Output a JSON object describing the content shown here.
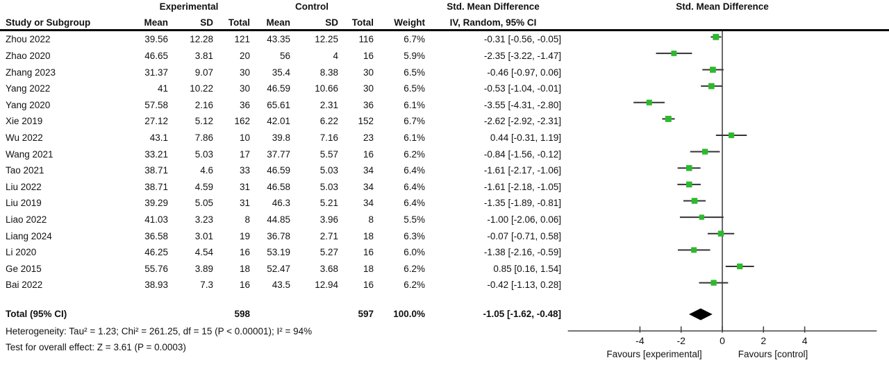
{
  "header": {
    "group_experimental": "Experimental",
    "group_control": "Control",
    "col_study": "Study or Subgroup",
    "col_mean": "Mean",
    "col_sd": "SD",
    "col_total": "Total",
    "col_weight": "Weight",
    "smd_text_title": "Std. Mean Difference",
    "smd_text_sub": "IV, Random, 95% CI",
    "smd_plot_title": "Std. Mean Difference",
    "smd_plot_sub": "IV, Random, 95% CI"
  },
  "footer": {
    "heterogeneity": "Heterogeneity: Tau² = 1.23; Chi² = 261.25, df = 15 (P < 0.00001); I² = 94%",
    "overall_effect": "Test for overall effect: Z = 3.61 (P = 0.0003)"
  },
  "chart_data": {
    "type": "forest",
    "effect_measure": "Std. Mean Difference",
    "method": "IV, Random, 95% CI",
    "studies": [
      {
        "name": "Zhou 2022",
        "mean_e": "39.56",
        "sd_e": "12.28",
        "total_e": "121",
        "mean_c": "43.35",
        "sd_c": "12.25",
        "total_c": "116",
        "weight": "6.7%",
        "ci_text": "-0.31 [-0.56, -0.05]",
        "est": -0.31,
        "lo": -0.56,
        "hi": -0.05
      },
      {
        "name": "Zhao 2020",
        "mean_e": "46.65",
        "sd_e": "3.81",
        "total_e": "20",
        "mean_c": "56",
        "sd_c": "4",
        "total_c": "16",
        "weight": "5.9%",
        "ci_text": "-2.35 [-3.22, -1.47]",
        "est": -2.35,
        "lo": -3.22,
        "hi": -1.47
      },
      {
        "name": "Zhang 2023",
        "mean_e": "31.37",
        "sd_e": "9.07",
        "total_e": "30",
        "mean_c": "35.4",
        "sd_c": "8.38",
        "total_c": "30",
        "weight": "6.5%",
        "ci_text": "-0.46 [-0.97, 0.06]",
        "est": -0.46,
        "lo": -0.97,
        "hi": 0.06
      },
      {
        "name": "Yang 2022",
        "mean_e": "41",
        "sd_e": "10.22",
        "total_e": "30",
        "mean_c": "46.59",
        "sd_c": "10.66",
        "total_c": "30",
        "weight": "6.5%",
        "ci_text": "-0.53 [-1.04, -0.01]",
        "est": -0.53,
        "lo": -1.04,
        "hi": -0.01
      },
      {
        "name": "Yang 2020",
        "mean_e": "57.58",
        "sd_e": "2.16",
        "total_e": "36",
        "mean_c": "65.61",
        "sd_c": "2.31",
        "total_c": "36",
        "weight": "6.1%",
        "ci_text": "-3.55 [-4.31, -2.80]",
        "est": -3.55,
        "lo": -4.31,
        "hi": -2.8
      },
      {
        "name": "Xie 2019",
        "mean_e": "27.12",
        "sd_e": "5.12",
        "total_e": "162",
        "mean_c": "42.01",
        "sd_c": "6.22",
        "total_c": "152",
        "weight": "6.7%",
        "ci_text": "-2.62 [-2.92, -2.31]",
        "est": -2.62,
        "lo": -2.92,
        "hi": -2.31
      },
      {
        "name": "Wu 2022",
        "mean_e": "43.1",
        "sd_e": "7.86",
        "total_e": "10",
        "mean_c": "39.8",
        "sd_c": "7.16",
        "total_c": "23",
        "weight": "6.1%",
        "ci_text": "0.44 [-0.31, 1.19]",
        "est": 0.44,
        "lo": -0.31,
        "hi": 1.19
      },
      {
        "name": "Wang 2021",
        "mean_e": "33.21",
        "sd_e": "5.03",
        "total_e": "17",
        "mean_c": "37.77",
        "sd_c": "5.57",
        "total_c": "16",
        "weight": "6.2%",
        "ci_text": "-0.84 [-1.56, -0.12]",
        "est": -0.84,
        "lo": -1.56,
        "hi": -0.12
      },
      {
        "name": "Tao 2021",
        "mean_e": "38.71",
        "sd_e": "4.6",
        "total_e": "33",
        "mean_c": "46.59",
        "sd_c": "5.03",
        "total_c": "34",
        "weight": "6.4%",
        "ci_text": "-1.61 [-2.17, -1.06]",
        "est": -1.61,
        "lo": -2.17,
        "hi": -1.06
      },
      {
        "name": "Liu 2022",
        "mean_e": "38.71",
        "sd_e": "4.59",
        "total_e": "31",
        "mean_c": "46.58",
        "sd_c": "5.03",
        "total_c": "34",
        "weight": "6.4%",
        "ci_text": "-1.61 [-2.18, -1.05]",
        "est": -1.61,
        "lo": -2.18,
        "hi": -1.05
      },
      {
        "name": "Liu 2019",
        "mean_e": "39.29",
        "sd_e": "5.05",
        "total_e": "31",
        "mean_c": "46.3",
        "sd_c": "5.21",
        "total_c": "34",
        "weight": "6.4%",
        "ci_text": "-1.35 [-1.89, -0.81]",
        "est": -1.35,
        "lo": -1.89,
        "hi": -0.81
      },
      {
        "name": "Liao 2022",
        "mean_e": "41.03",
        "sd_e": "3.23",
        "total_e": "8",
        "mean_c": "44.85",
        "sd_c": "3.96",
        "total_c": "8",
        "weight": "5.5%",
        "ci_text": "-1.00 [-2.06, 0.06]",
        "est": -1.0,
        "lo": -2.06,
        "hi": 0.06
      },
      {
        "name": "Liang 2024",
        "mean_e": "36.58",
        "sd_e": "3.01",
        "total_e": "19",
        "mean_c": "36.78",
        "sd_c": "2.71",
        "total_c": "18",
        "weight": "6.3%",
        "ci_text": "-0.07 [-0.71, 0.58]",
        "est": -0.07,
        "lo": -0.71,
        "hi": 0.58
      },
      {
        "name": "Li 2020",
        "mean_e": "46.25",
        "sd_e": "4.54",
        "total_e": "16",
        "mean_c": "53.19",
        "sd_c": "5.27",
        "total_c": "16",
        "weight": "6.0%",
        "ci_text": "-1.38 [-2.16, -0.59]",
        "est": -1.38,
        "lo": -2.16,
        "hi": -0.59
      },
      {
        "name": "Ge 2015",
        "mean_e": "55.76",
        "sd_e": "3.89",
        "total_e": "18",
        "mean_c": "52.47",
        "sd_c": "3.68",
        "total_c": "18",
        "weight": "6.2%",
        "ci_text": "0.85 [0.16, 1.54]",
        "est": 0.85,
        "lo": 0.16,
        "hi": 1.54
      },
      {
        "name": "Bai 2022",
        "mean_e": "38.93",
        "sd_e": "7.3",
        "total_e": "16",
        "mean_c": "43.5",
        "sd_c": "12.94",
        "total_c": "16",
        "weight": "6.2%",
        "ci_text": "-0.42 [-1.13, 0.28]",
        "est": -0.42,
        "lo": -1.13,
        "hi": 0.28
      }
    ],
    "total": {
      "label": "Total (95% CI)",
      "total_e": "598",
      "total_c": "597",
      "weight": "100.0%",
      "ci_text": "-1.05 [-1.62, -0.48]",
      "est": -1.05,
      "lo": -1.62,
      "hi": -0.48
    },
    "plot": {
      "ticks": [
        -4,
        -2,
        0,
        2,
        4
      ],
      "xmin": -7.5,
      "xmax": 7.5,
      "zero_x": 0,
      "favours_left": "Favours [experimental]",
      "favours_right": "Favours [control]",
      "marker_color": "#2db92d",
      "line_color": "#333333",
      "axis_color": "#444444",
      "diamond_color": "#000000"
    }
  }
}
